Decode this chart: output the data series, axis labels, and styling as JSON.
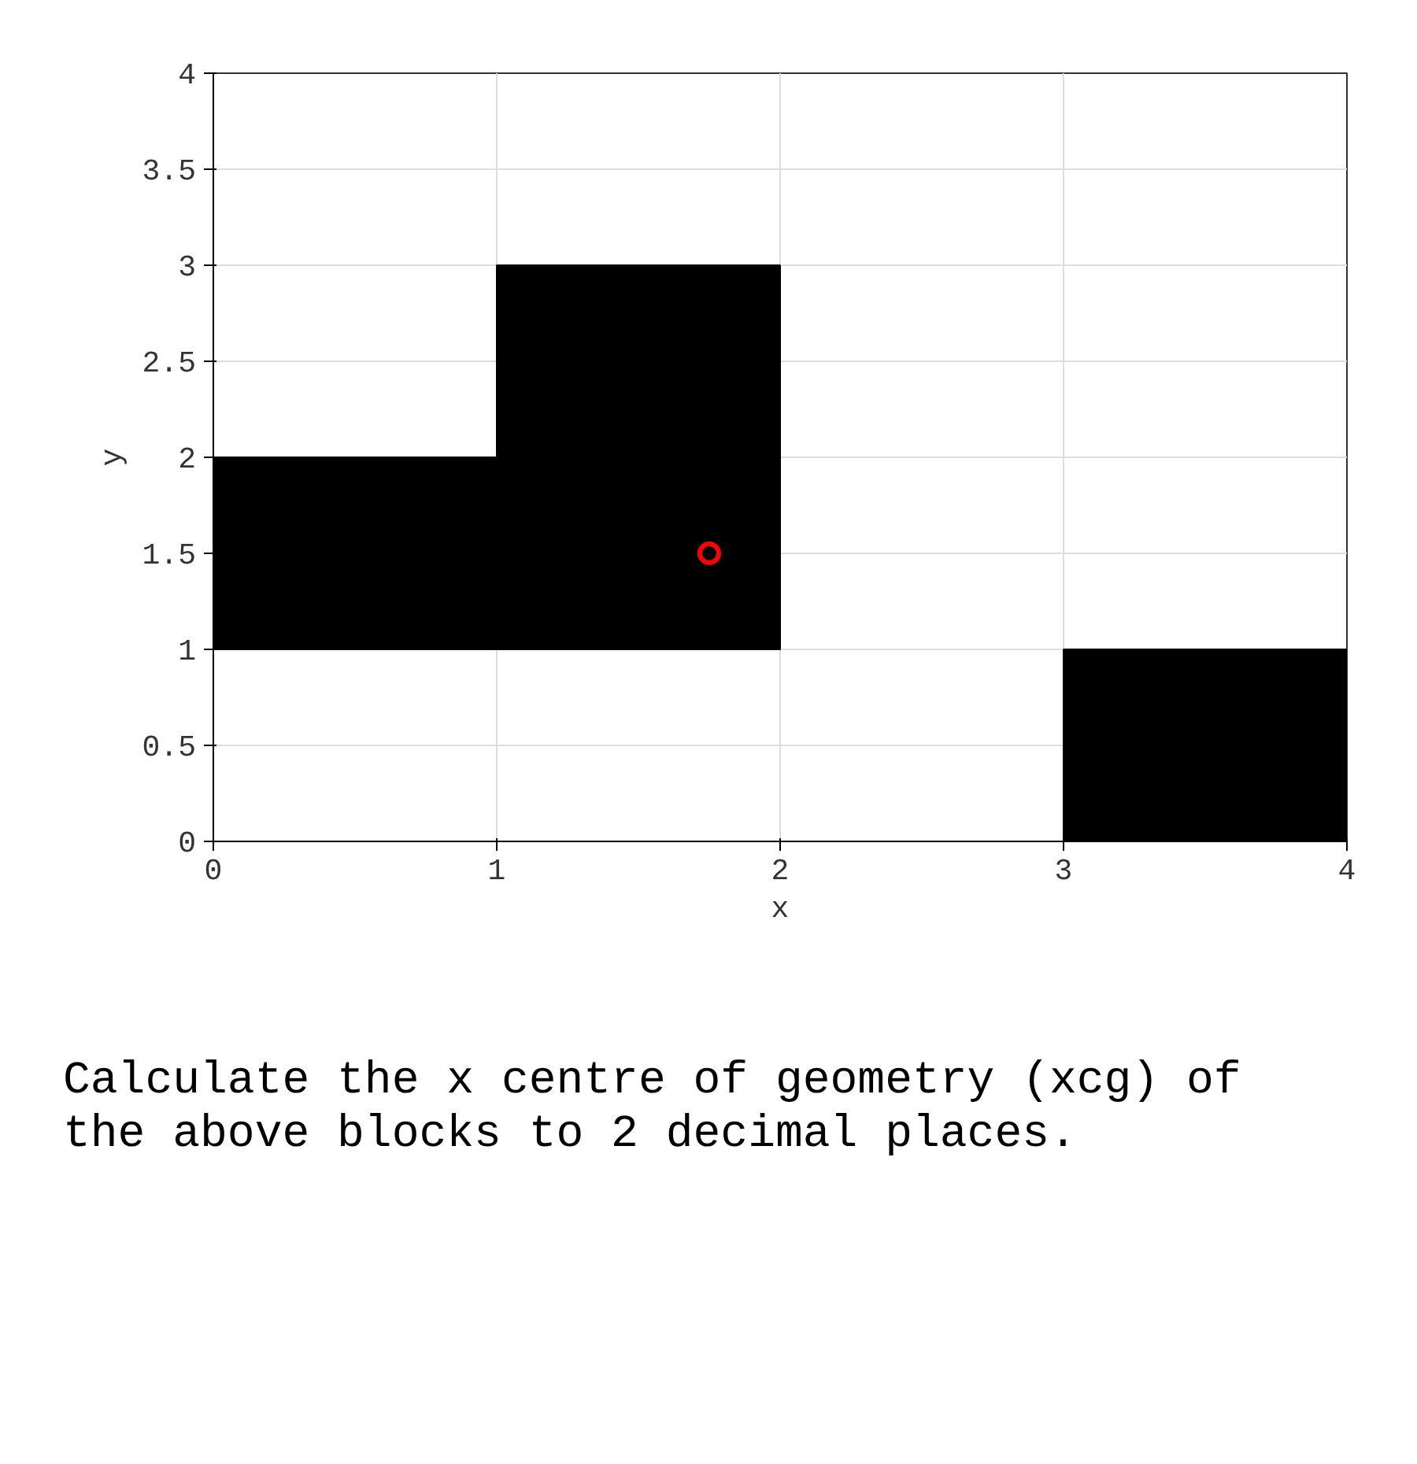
{
  "chart_data": {
    "type": "bar",
    "xlabel": "x",
    "ylabel": "y",
    "xlim": [
      0,
      4
    ],
    "ylim": [
      0,
      4
    ],
    "xticks": [
      0,
      1,
      2,
      3,
      4
    ],
    "yticks": [
      0,
      {
        "value": 0.5,
        "label": "0.5"
      },
      1,
      {
        "value": 1.5,
        "label": "1.5"
      },
      2,
      {
        "value": 2.5,
        "label": "2.5"
      },
      3,
      {
        "value": 3.5,
        "label": "3.5"
      },
      4
    ],
    "grid": true,
    "series": [
      {
        "color": "#000000",
        "x": [
          0.5,
          1.5,
          3.5
        ],
        "base": [
          1,
          1,
          0
        ],
        "values": [
          1,
          2,
          1
        ]
      },
      {
        "type": "scatter",
        "color": "#ff0000",
        "marker": "circle",
        "x": [
          1.75
        ],
        "values": [
          1.5
        ]
      }
    ],
    "annotations": [
      "Calculate the x centre of geometry (xcg) of the above blocks to 2 decimal places."
    ]
  }
}
